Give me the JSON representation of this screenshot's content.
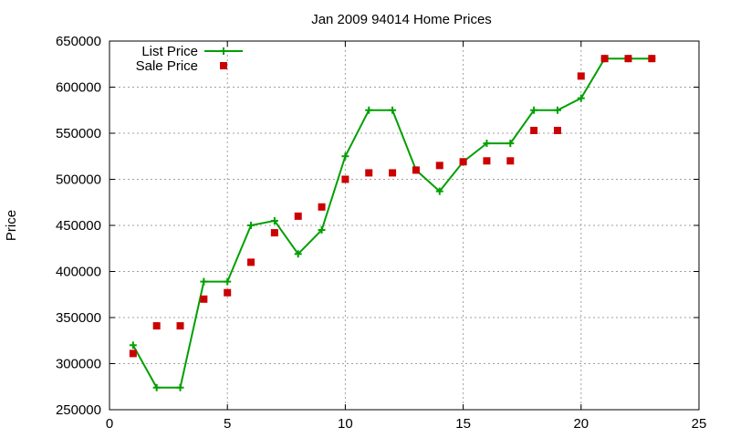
{
  "chart_data": {
    "type": "line",
    "title": "Jan 2009 94014 Home Prices",
    "xlabel": "",
    "ylabel": "Price",
    "xlim": [
      0,
      25
    ],
    "ylim": [
      250000,
      650000
    ],
    "xticks": [
      0,
      5,
      10,
      15,
      20,
      25
    ],
    "yticks": [
      250000,
      300000,
      350000,
      400000,
      450000,
      500000,
      550000,
      600000,
      650000
    ],
    "grid": true,
    "legend_position": "top-left",
    "series": [
      {
        "name": "List Price",
        "style": "line-plus",
        "color": "#00a000",
        "x": [
          1,
          2,
          3,
          4,
          5,
          6,
          7,
          8,
          9,
          10,
          11,
          12,
          13,
          14,
          15,
          16,
          17,
          18,
          19,
          20,
          21,
          22,
          23
        ],
        "y": [
          320000,
          274000,
          274000,
          389000,
          389000,
          450000,
          455000,
          419000,
          445000,
          525000,
          575000,
          575000,
          510000,
          487000,
          519000,
          539000,
          539000,
          575000,
          575000,
          588000,
          631000,
          631000,
          631000
        ]
      },
      {
        "name": "Sale Price",
        "style": "square-marker",
        "color": "#cc0000",
        "x": [
          1,
          2,
          3,
          4,
          5,
          6,
          7,
          8,
          9,
          10,
          11,
          12,
          13,
          14,
          15,
          16,
          17,
          18,
          19,
          20,
          21,
          22,
          23
        ],
        "y": [
          311000,
          341000,
          341000,
          370000,
          377000,
          410000,
          442000,
          460000,
          470000,
          500000,
          507000,
          507000,
          510000,
          515000,
          519000,
          520000,
          520000,
          553000,
          553000,
          612000,
          631000,
          631000,
          631000
        ]
      }
    ]
  }
}
